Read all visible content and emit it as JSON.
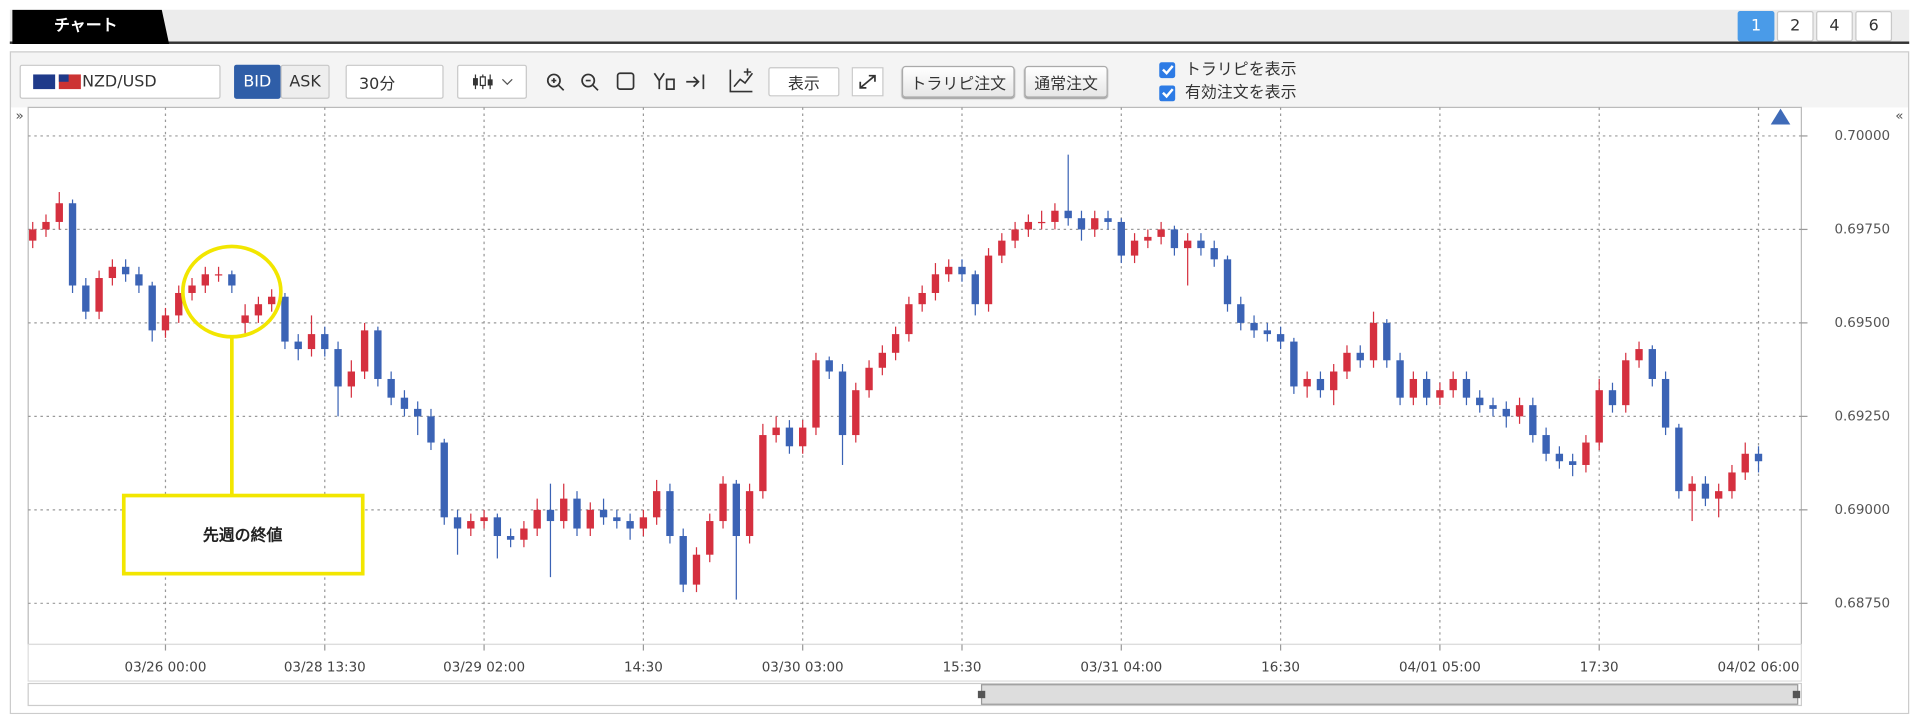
{
  "ui": {
    "tab": "チャート",
    "pages": [
      "1",
      "2",
      "4",
      "6"
    ],
    "pair": "NZD/USD",
    "bid": "BID",
    "ask": "ASK",
    "interval": "30分",
    "display": "表示",
    "trarepi_order": "トラリピ注文",
    "normal_order": "通常注文",
    "show_trarepi": "トラリピを表示",
    "show_orders": "有効注文を表示",
    "collapse_left": "»",
    "collapse_right": "«"
  },
  "chart_data": {
    "type": "candlestick",
    "up_color": "#d5303f",
    "down_color": "#3b63b5",
    "grid": true,
    "categories": [
      null,
      null,
      null,
      null,
      null,
      null,
      null,
      null,
      null,
      null,
      "03/26 00:00",
      null,
      null,
      null,
      null,
      null,
      null,
      null,
      null,
      null,
      null,
      null,
      "03/28 13:30",
      null,
      null,
      null,
      null,
      null,
      null,
      null,
      null,
      null,
      null,
      null,
      "03/29 02:00",
      null,
      null,
      null,
      null,
      null,
      null,
      null,
      null,
      null,
      null,
      null,
      "14:30",
      null,
      null,
      null,
      null,
      null,
      null,
      null,
      null,
      null,
      null,
      null,
      "03/30 03:00",
      null,
      null,
      null,
      null,
      null,
      null,
      null,
      null,
      null,
      null,
      null,
      "15:30",
      null,
      null,
      null,
      null,
      null,
      null,
      null,
      null,
      null,
      null,
      null,
      "03/31 04:00",
      null,
      null,
      null,
      null,
      null,
      null,
      null,
      null,
      null,
      null,
      null,
      "16:30",
      null,
      null,
      null,
      null,
      null,
      null,
      null,
      null,
      null,
      null,
      null,
      "04/01 05:00",
      null,
      null,
      null,
      null,
      null,
      null,
      null,
      null,
      null,
      null,
      null,
      "17:30",
      null,
      null,
      null,
      null,
      null,
      null,
      null,
      null,
      null,
      null,
      null,
      "04/02 06:00"
    ],
    "open": [
      0.6972,
      0.6975,
      0.6977,
      0.6982,
      0.696,
      0.6953,
      0.6962,
      0.6965,
      0.6963,
      0.696,
      0.6948,
      0.6952,
      0.6958,
      0.696,
      0.6963,
      0.6963,
      0.695,
      0.6952,
      0.6955,
      0.6957,
      0.6945,
      0.6943,
      0.6947,
      0.6943,
      0.6933,
      0.6937,
      0.6948,
      0.6935,
      0.693,
      0.6927,
      0.6925,
      0.6918,
      0.6898,
      0.6895,
      0.6897,
      0.6898,
      0.6893,
      0.6892,
      0.6895,
      0.69,
      0.6897,
      0.6903,
      0.6895,
      0.69,
      0.6898,
      0.6897,
      0.6895,
      0.6898,
      0.6905,
      0.6893,
      0.688,
      0.6888,
      0.6897,
      0.6907,
      0.6893,
      0.6905,
      0.692,
      0.6922,
      0.6917,
      0.6922,
      0.694,
      0.6937,
      0.692,
      0.6932,
      0.6938,
      0.6942,
      0.6947,
      0.6955,
      0.6958,
      0.6963,
      0.6965,
      0.6963,
      0.6955,
      0.6968,
      0.6972,
      0.6975,
      0.6977,
      0.6977,
      0.698,
      0.6978,
      0.6975,
      0.6978,
      0.6977,
      0.6968,
      0.6972,
      0.6973,
      0.6975,
      0.697,
      0.6972,
      0.697,
      0.6967,
      0.6955,
      0.695,
      0.6948,
      0.6947,
      0.6945,
      0.6933,
      0.6935,
      0.6932,
      0.6937,
      0.6942,
      0.694,
      0.695,
      0.694,
      0.693,
      0.6935,
      0.693,
      0.6932,
      0.6935,
      0.693,
      0.6928,
      0.6927,
      0.6925,
      0.6928,
      0.692,
      0.6915,
      0.6913,
      0.6912,
      0.6918,
      0.6932,
      0.6928,
      0.694,
      0.6943,
      0.6935,
      0.6922,
      0.6905,
      0.6907,
      0.6903,
      0.6905,
      0.691,
      0.6915
    ],
    "high": [
      0.6977,
      0.6979,
      0.6985,
      0.6983,
      0.6962,
      0.6964,
      0.6967,
      0.6967,
      0.6965,
      0.6961,
      0.6954,
      0.696,
      0.6962,
      0.6965,
      0.6965,
      0.6964,
      0.6955,
      0.6957,
      0.6959,
      0.6958,
      0.6947,
      0.6952,
      0.6949,
      0.6945,
      0.694,
      0.695,
      0.6949,
      0.6937,
      0.6932,
      0.6929,
      0.6927,
      0.6919,
      0.69,
      0.6899,
      0.69,
      0.6899,
      0.6895,
      0.6897,
      0.6903,
      0.6907,
      0.6907,
      0.6905,
      0.6902,
      0.6903,
      0.69,
      0.6899,
      0.69,
      0.6908,
      0.6907,
      0.6895,
      0.689,
      0.6899,
      0.6909,
      0.6908,
      0.6907,
      0.6923,
      0.6925,
      0.6924,
      0.6924,
      0.6942,
      0.6941,
      0.6939,
      0.6934,
      0.694,
      0.6944,
      0.6949,
      0.6957,
      0.696,
      0.6966,
      0.6967,
      0.6967,
      0.6964,
      0.697,
      0.6974,
      0.6977,
      0.6979,
      0.698,
      0.6982,
      0.6995,
      0.698,
      0.698,
      0.698,
      0.6978,
      0.6974,
      0.6975,
      0.6977,
      0.6976,
      0.6974,
      0.6974,
      0.6972,
      0.6968,
      0.6957,
      0.6952,
      0.695,
      0.6949,
      0.6946,
      0.6937,
      0.6937,
      0.6939,
      0.6944,
      0.6944,
      0.6953,
      0.6951,
      0.6942,
      0.6937,
      0.6937,
      0.6934,
      0.6937,
      0.6937,
      0.6932,
      0.693,
      0.6929,
      0.693,
      0.693,
      0.6922,
      0.6917,
      0.6915,
      0.692,
      0.6935,
      0.6934,
      0.6942,
      0.6945,
      0.6944,
      0.6937,
      0.6923,
      0.6909,
      0.6909,
      0.6907,
      0.6912,
      0.6918,
      0.6917
    ],
    "low": [
      0.697,
      0.6973,
      0.6975,
      0.6958,
      0.6951,
      0.6951,
      0.696,
      0.6961,
      0.6958,
      0.6945,
      0.6946,
      0.695,
      0.6956,
      0.6958,
      0.6961,
      0.6958,
      0.6947,
      0.695,
      0.6953,
      0.6943,
      0.694,
      0.6941,
      0.6941,
      0.6925,
      0.693,
      0.6935,
      0.6933,
      0.6928,
      0.6925,
      0.692,
      0.6916,
      0.6896,
      0.6888,
      0.6893,
      0.6895,
      0.6887,
      0.689,
      0.689,
      0.6893,
      0.6882,
      0.6895,
      0.6893,
      0.6893,
      0.6896,
      0.6895,
      0.6892,
      0.6893,
      0.6896,
      0.6891,
      0.6878,
      0.6878,
      0.6886,
      0.6895,
      0.6876,
      0.6891,
      0.6903,
      0.6918,
      0.6915,
      0.6915,
      0.692,
      0.6935,
      0.6912,
      0.6918,
      0.693,
      0.6936,
      0.694,
      0.6945,
      0.6953,
      0.6956,
      0.6961,
      0.6961,
      0.6952,
      0.6953,
      0.6966,
      0.697,
      0.6973,
      0.6975,
      0.6975,
      0.6976,
      0.6972,
      0.6973,
      0.6975,
      0.6966,
      0.6966,
      0.697,
      0.6971,
      0.6968,
      0.696,
      0.6968,
      0.6965,
      0.6953,
      0.6948,
      0.6946,
      0.6945,
      0.6943,
      0.6931,
      0.693,
      0.693,
      0.6928,
      0.6935,
      0.6938,
      0.6938,
      0.6938,
      0.6928,
      0.6928,
      0.6928,
      0.6928,
      0.693,
      0.6928,
      0.6926,
      0.6925,
      0.6922,
      0.6923,
      0.6918,
      0.6913,
      0.6911,
      0.6909,
      0.691,
      0.6916,
      0.6926,
      0.6926,
      0.6938,
      0.6933,
      0.692,
      0.6903,
      0.6897,
      0.6901,
      0.6898,
      0.6903,
      0.6908,
      0.691
    ],
    "close": [
      0.6975,
      0.6977,
      0.6982,
      0.696,
      0.6953,
      0.6962,
      0.6965,
      0.6963,
      0.696,
      0.6948,
      0.6952,
      0.6958,
      0.696,
      0.6963,
      0.6963,
      0.696,
      0.6952,
      0.6955,
      0.6957,
      0.6945,
      0.6943,
      0.6947,
      0.6943,
      0.6933,
      0.6937,
      0.6948,
      0.6935,
      0.693,
      0.6927,
      0.6925,
      0.6918,
      0.6898,
      0.6895,
      0.6897,
      0.6898,
      0.6893,
      0.6892,
      0.6895,
      0.69,
      0.6897,
      0.6903,
      0.6895,
      0.69,
      0.6898,
      0.6897,
      0.6895,
      0.6898,
      0.6905,
      0.6893,
      0.688,
      0.6888,
      0.6897,
      0.6907,
      0.6893,
      0.6905,
      0.692,
      0.6922,
      0.6917,
      0.6922,
      0.694,
      0.6937,
      0.692,
      0.6932,
      0.6938,
      0.6942,
      0.6947,
      0.6955,
      0.6958,
      0.6963,
      0.6965,
      0.6963,
      0.6955,
      0.6968,
      0.6972,
      0.6975,
      0.6977,
      0.6977,
      0.698,
      0.6978,
      0.6975,
      0.6978,
      0.6977,
      0.6968,
      0.6972,
      0.6973,
      0.6975,
      0.697,
      0.6972,
      0.697,
      0.6967,
      0.6955,
      0.695,
      0.6948,
      0.6947,
      0.6945,
      0.6933,
      0.6935,
      0.6932,
      0.6937,
      0.6942,
      0.694,
      0.695,
      0.694,
      0.693,
      0.6935,
      0.693,
      0.6932,
      0.6935,
      0.693,
      0.6928,
      0.6927,
      0.6925,
      0.6928,
      0.692,
      0.6915,
      0.6913,
      0.6912,
      0.6918,
      0.6932,
      0.6928,
      0.694,
      0.6943,
      0.6935,
      0.6922,
      0.6905,
      0.6907,
      0.6903,
      0.6905,
      0.691,
      0.6915,
      0.6913
    ],
    "ylim": [
      0.6864,
      0.7006
    ],
    "yticks": [
      {
        "value": 0.7,
        "label": "0.70000"
      },
      {
        "value": 0.6975,
        "label": "0.69750"
      },
      {
        "value": 0.695,
        "label": "0.69500"
      },
      {
        "value": 0.6925,
        "label": "0.69250"
      },
      {
        "value": 0.69,
        "label": "0.69000"
      },
      {
        "value": 0.6875,
        "label": "0.68750"
      }
    ],
    "annotation": {
      "text": "先週の終値",
      "color": "#f2e600"
    }
  }
}
